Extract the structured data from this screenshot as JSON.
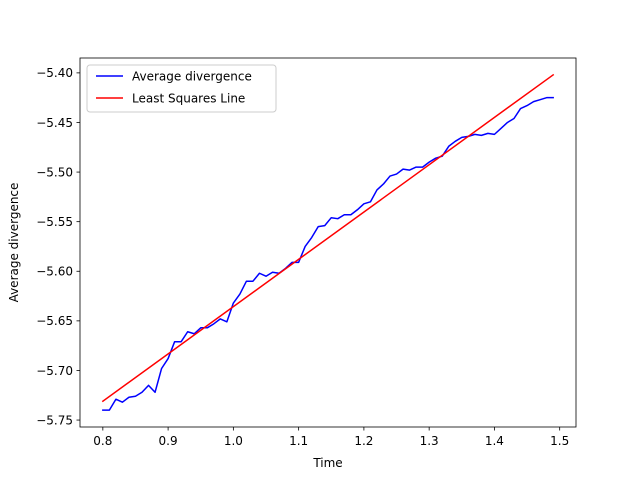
{
  "chart_data": {
    "type": "line",
    "title": "",
    "xlabel": "Time",
    "ylabel": "Average divergence",
    "xlim": [
      0.765,
      1.525
    ],
    "ylim": [
      -5.757,
      -5.385
    ],
    "x_ticks": [
      0.8,
      0.9,
      1.0,
      1.1,
      1.2,
      1.3,
      1.4,
      1.5
    ],
    "x_tick_labels": [
      "0.8",
      "0.9",
      "1.0",
      "1.1",
      "1.2",
      "1.3",
      "1.4",
      "1.5"
    ],
    "y_ticks": [
      -5.75,
      -5.7,
      -5.65,
      -5.6,
      -5.55,
      -5.5,
      -5.45,
      -5.4
    ],
    "y_tick_labels": [
      "−5.75",
      "−5.70",
      "−5.65",
      "−5.60",
      "−5.55",
      "−5.50",
      "−5.45",
      "−5.40"
    ],
    "grid": false,
    "legend_position": "upper-left",
    "series": [
      {
        "name": "Average divergence",
        "color": "#0000ff",
        "x": [
          0.8,
          0.81,
          0.82,
          0.83,
          0.84,
          0.85,
          0.86,
          0.87,
          0.88,
          0.89,
          0.9,
          0.91,
          0.92,
          0.93,
          0.94,
          0.95,
          0.96,
          0.97,
          0.98,
          0.99,
          1.0,
          1.01,
          1.02,
          1.03,
          1.04,
          1.05,
          1.06,
          1.07,
          1.08,
          1.09,
          1.1,
          1.11,
          1.12,
          1.13,
          1.14,
          1.15,
          1.16,
          1.17,
          1.18,
          1.19,
          1.2,
          1.21,
          1.22,
          1.23,
          1.24,
          1.25,
          1.26,
          1.27,
          1.28,
          1.29,
          1.3,
          1.31,
          1.32,
          1.33,
          1.34,
          1.35,
          1.36,
          1.37,
          1.38,
          1.39,
          1.4,
          1.41,
          1.42,
          1.43,
          1.44,
          1.45,
          1.46,
          1.47,
          1.48,
          1.49
        ],
        "y": [
          -5.74,
          -5.74,
          -5.729,
          -5.732,
          -5.727,
          -5.726,
          -5.722,
          -5.715,
          -5.722,
          -5.698,
          -5.688,
          -5.671,
          -5.671,
          -5.661,
          -5.663,
          -5.657,
          -5.657,
          -5.653,
          -5.648,
          -5.651,
          -5.632,
          -5.623,
          -5.61,
          -5.61,
          -5.602,
          -5.605,
          -5.601,
          -5.602,
          -5.597,
          -5.591,
          -5.591,
          -5.575,
          -5.566,
          -5.555,
          -5.554,
          -5.546,
          -5.547,
          -5.543,
          -5.543,
          -5.538,
          -5.532,
          -5.53,
          -5.518,
          -5.512,
          -5.504,
          -5.502,
          -5.497,
          -5.498,
          -5.495,
          -5.495,
          -5.49,
          -5.486,
          -5.484,
          -5.474,
          -5.469,
          -5.465,
          -5.464,
          -5.462,
          -5.463,
          -5.461,
          -5.462,
          -5.456,
          -5.45,
          -5.446,
          -5.436,
          -5.433,
          -5.429,
          -5.427,
          -5.425,
          -5.425
        ]
      },
      {
        "name": "Least Squares Line",
        "color": "#ff0000",
        "x": [
          0.8,
          1.49
        ],
        "y": [
          -5.731,
          -5.402
        ]
      }
    ]
  }
}
